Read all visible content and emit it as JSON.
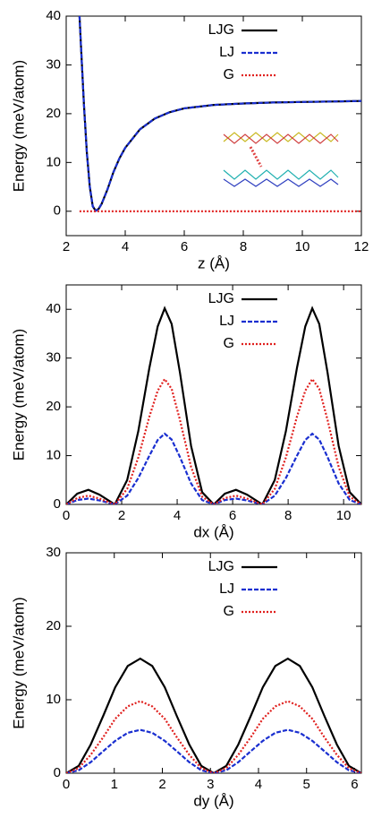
{
  "chart_data": [
    {
      "type": "line",
      "xlabel": "z (Å)",
      "ylabel": "Energy (meV/atom)",
      "xlim": [
        2,
        12
      ],
      "xticks": [
        2,
        4,
        6,
        8,
        10,
        12
      ],
      "ylim": [
        -5,
        40
      ],
      "yticks": [
        0,
        10,
        20,
        30,
        40
      ],
      "legend": "top",
      "x": [
        2.45,
        2.5,
        2.6,
        2.7,
        2.8,
        2.9,
        3.0,
        3.1,
        3.2,
        3.4,
        3.6,
        3.8,
        4.0,
        4.5,
        5,
        5.5,
        6,
        7,
        8,
        9,
        10,
        11,
        12
      ],
      "series": [
        {
          "name": "LJG",
          "color": "#000000",
          "dash": "none",
          "values": [
            40,
            34,
            22,
            12,
            5,
            1,
            0.1,
            0.5,
            1.5,
            4.5,
            8,
            10.8,
            13,
            16.8,
            19,
            20.3,
            21.1,
            21.8,
            22.1,
            22.3,
            22.4,
            22.5,
            22.6
          ]
        },
        {
          "name": "LJ",
          "color": "#1a2fd0",
          "dash": "5,2",
          "values": [
            40,
            34,
            22,
            12,
            5,
            1,
            0.1,
            0.5,
            1.5,
            4.5,
            8,
            10.8,
            13,
            16.8,
            19,
            20.3,
            21.1,
            21.8,
            22.1,
            22.3,
            22.4,
            22.5,
            22.6
          ]
        },
        {
          "name": "G",
          "color": "#e0201e",
          "dash": "2,2",
          "values": [
            0,
            0,
            0,
            0,
            0,
            0,
            0,
            0,
            0,
            0,
            0,
            0,
            0,
            0,
            0,
            0,
            0,
            0,
            0,
            0,
            0,
            0,
            0
          ]
        }
      ]
    },
    {
      "type": "line",
      "xlabel": "dx (Å)",
      "ylabel": "Energy (meV/atom)",
      "xlim": [
        0,
        10.64
      ],
      "xticks": [
        0,
        2,
        4,
        6,
        8,
        10
      ],
      "ylim": [
        0,
        45
      ],
      "yticks": [
        0,
        10,
        20,
        30,
        40
      ],
      "legend": "top",
      "x": [
        0,
        0.4,
        0.8,
        1.2,
        1.75,
        2.2,
        2.6,
        3.0,
        3.3,
        3.55,
        3.8,
        4.1,
        4.5,
        4.9,
        5.32,
        5.72,
        6.12,
        6.52,
        7.07,
        7.52,
        7.92,
        8.32,
        8.62,
        8.87,
        9.12,
        9.42,
        9.82,
        10.22,
        10.64
      ],
      "series": [
        {
          "name": "LJG",
          "color": "#000000",
          "dash": "none",
          "values": [
            0,
            2.2,
            3,
            2.0,
            0,
            5,
            15,
            28,
            36.5,
            40.2,
            37,
            27,
            12,
            2.5,
            0,
            2.2,
            3,
            2.0,
            0,
            5,
            15,
            28,
            36.5,
            40.2,
            37,
            27,
            12,
            2.5,
            0
          ]
        },
        {
          "name": "LJ",
          "color": "#1a2fd0",
          "dash": "5,2",
          "values": [
            0,
            0.9,
            1.2,
            0.8,
            0,
            1.8,
            5.4,
            10,
            13.2,
            14.5,
            13.3,
            9.7,
            4.3,
            0.9,
            0,
            0.9,
            1.2,
            0.8,
            0,
            1.8,
            5.4,
            10,
            13.2,
            14.5,
            13.3,
            9.7,
            4.3,
            0.9,
            0
          ]
        },
        {
          "name": "G",
          "color": "#e0201e",
          "dash": "2,2",
          "values": [
            0,
            1.3,
            1.8,
            1.2,
            0,
            3.2,
            9.6,
            18,
            23.3,
            25.7,
            23.7,
            17.3,
            7.7,
            1.6,
            0,
            1.3,
            1.8,
            1.2,
            0,
            3.2,
            9.6,
            18,
            23.3,
            25.7,
            23.7,
            17.3,
            7.7,
            1.6,
            0
          ]
        }
      ]
    },
    {
      "type": "line",
      "xlabel": "dy (Å)",
      "ylabel": "Energy (meV/atom)",
      "xlim": [
        0,
        6.14
      ],
      "xticks": [
        0,
        1,
        2,
        3,
        4,
        5,
        6
      ],
      "ylim": [
        0,
        30
      ],
      "yticks": [
        0,
        10,
        20,
        30
      ],
      "legend": "top",
      "x": [
        0,
        0.26,
        0.51,
        0.77,
        1.02,
        1.28,
        1.54,
        1.79,
        2.05,
        2.3,
        2.56,
        2.81,
        3.07,
        3.33,
        3.58,
        3.84,
        4.09,
        4.35,
        4.61,
        4.86,
        5.12,
        5.37,
        5.63,
        5.88,
        6.14
      ],
      "series": [
        {
          "name": "LJG",
          "color": "#000000",
          "dash": "none",
          "values": [
            0,
            1.0,
            3.9,
            7.8,
            11.7,
            14.6,
            15.6,
            14.6,
            11.7,
            7.8,
            3.9,
            1.0,
            0,
            1.0,
            3.9,
            7.8,
            11.7,
            14.6,
            15.6,
            14.6,
            11.7,
            7.8,
            3.9,
            1.0,
            0
          ]
        },
        {
          "name": "LJ",
          "color": "#1a2fd0",
          "dash": "5,2",
          "values": [
            0,
            0.4,
            1.5,
            3.0,
            4.4,
            5.5,
            5.9,
            5.5,
            4.4,
            3.0,
            1.5,
            0.4,
            0,
            0.4,
            1.5,
            3.0,
            4.4,
            5.5,
            5.9,
            5.5,
            4.4,
            3.0,
            1.5,
            0.4,
            0
          ]
        },
        {
          "name": "G",
          "color": "#e0201e",
          "dash": "2,2",
          "values": [
            0,
            0.7,
            2.5,
            4.9,
            7.4,
            9.1,
            9.8,
            9.1,
            7.4,
            4.9,
            2.5,
            0.7,
            0,
            0.7,
            2.5,
            4.9,
            7.4,
            9.1,
            9.8,
            9.1,
            7.4,
            4.9,
            2.5,
            0.7,
            0
          ]
        }
      ]
    }
  ]
}
